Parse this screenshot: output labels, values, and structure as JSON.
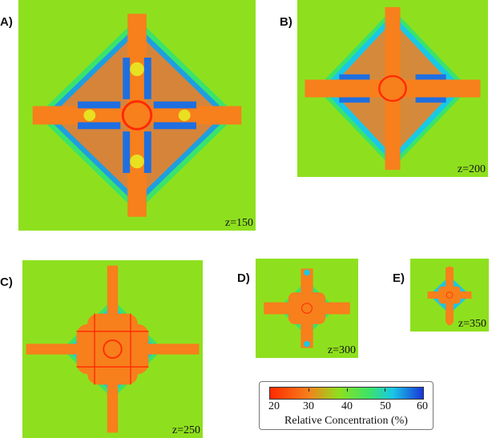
{
  "panels": [
    {
      "letter": "A)",
      "z_label": "z=150"
    },
    {
      "letter": "B)",
      "z_label": "z=200"
    },
    {
      "letter": "C)",
      "z_label": "z=250"
    },
    {
      "letter": "D)",
      "z_label": "z=300"
    },
    {
      "letter": "E)",
      "z_label": "z=350"
    }
  ],
  "colorbar": {
    "ticks": [
      "20",
      "30",
      "40",
      "50",
      "60"
    ],
    "title": "Relative Concentration (%)",
    "colors": {
      "low": "#ff2a00",
      "orange": "#f77f1c",
      "background": "#8ee01e",
      "green": "#3be36a",
      "cyan": "#19c8e6",
      "high": "#1a35d8"
    }
  }
}
